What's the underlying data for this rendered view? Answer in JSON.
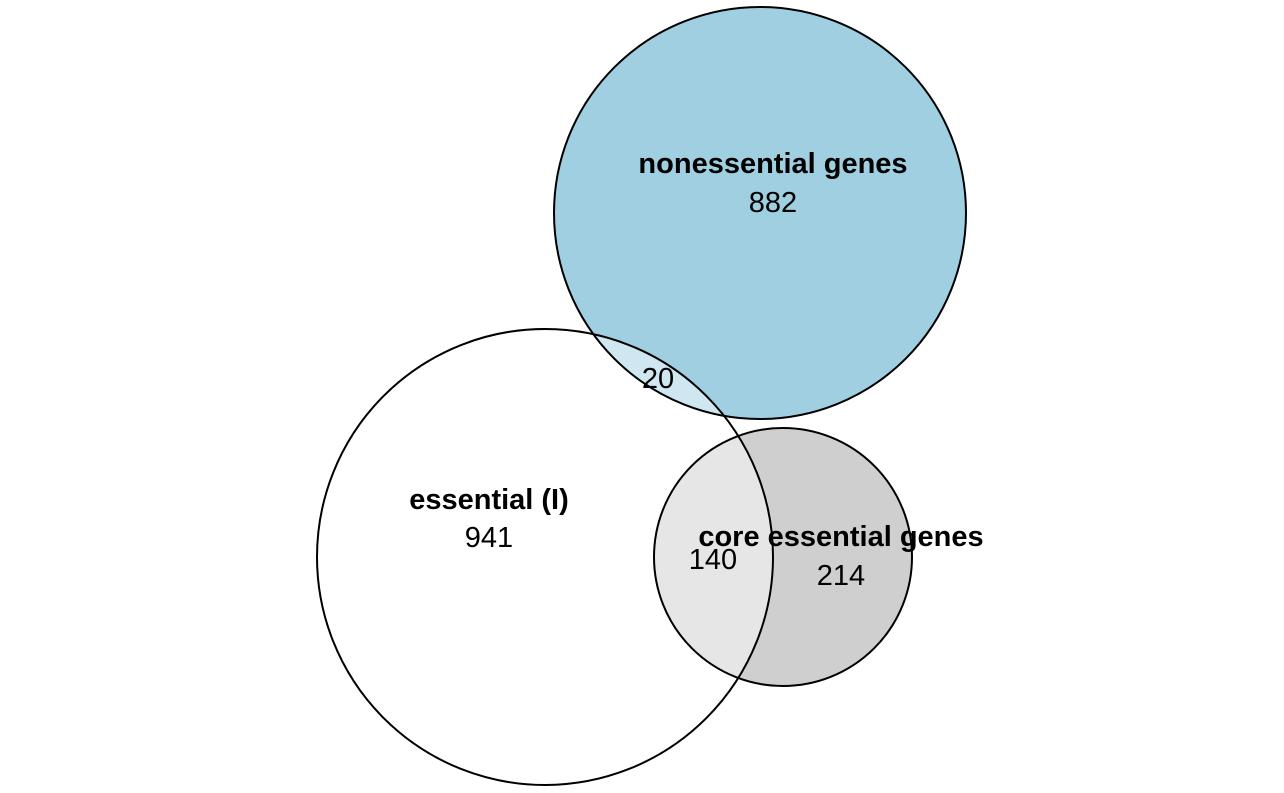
{
  "sets": [
    {
      "id": "essential",
      "name": "essential (I)",
      "count": "941",
      "fill": "#ffffff"
    },
    {
      "id": "nonessential",
      "name": "nonessential genes",
      "count": "882",
      "fill": "#9fcfe0"
    },
    {
      "id": "core",
      "name": "core essential genes",
      "count": "214",
      "fill": "#cfcfcf"
    }
  ],
  "overlaps": [
    {
      "id": "essential-nonessential",
      "count": "20",
      "fill": "#cfe7f0"
    },
    {
      "id": "essential-core",
      "count": "140",
      "fill": "#e6e6e6"
    }
  ],
  "colors": {
    "outline": "#000000",
    "background": "#ffffff"
  }
}
